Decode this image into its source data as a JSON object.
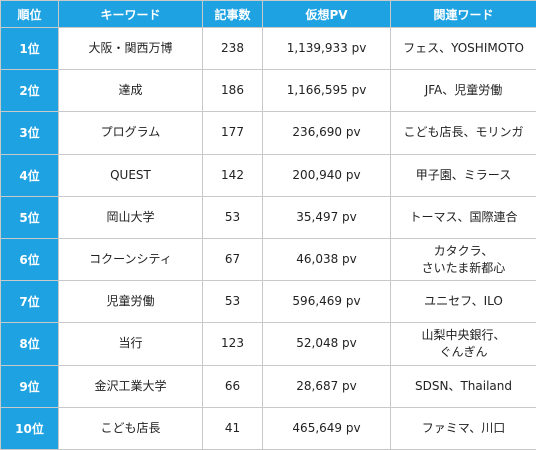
{
  "table": {
    "headers": {
      "rank": "順位",
      "keyword": "キーワード",
      "articles": "記事数",
      "pv": "仮想PV",
      "related": "関連ワード"
    },
    "rows": [
      {
        "rank": "1位",
        "keyword": "大阪・関西万博",
        "articles": "238",
        "pv": "1,139,933 pv",
        "related": [
          "フェス、YOSHIMOTO"
        ]
      },
      {
        "rank": "2位",
        "keyword": "達成",
        "articles": "186",
        "pv": "1,166,595 pv",
        "related": [
          "JFA、児童労働"
        ]
      },
      {
        "rank": "3位",
        "keyword": "プログラム",
        "articles": "177",
        "pv": "236,690 pv",
        "related": [
          "こども店長、モリンガ"
        ]
      },
      {
        "rank": "4位",
        "keyword": "QUEST",
        "articles": "142",
        "pv": "200,940 pv",
        "related": [
          "甲子園、ミラース"
        ]
      },
      {
        "rank": "5位",
        "keyword": "岡山大学",
        "articles": "53",
        "pv": "35,497 pv",
        "related": [
          "トーマス、国際連合"
        ]
      },
      {
        "rank": "6位",
        "keyword": "コクーンシティ",
        "articles": "67",
        "pv": "46,038 pv",
        "related": [
          "カタクラ、",
          "さいたま新都心"
        ]
      },
      {
        "rank": "7位",
        "keyword": "児童労働",
        "articles": "53",
        "pv": "596,469 pv",
        "related": [
          "ユニセフ、ILO"
        ]
      },
      {
        "rank": "8位",
        "keyword": "当行",
        "articles": "123",
        "pv": "52,048 pv",
        "related": [
          "山梨中央銀行、",
          "ぐんぎん"
        ]
      },
      {
        "rank": "9位",
        "keyword": "金沢工業大学",
        "articles": "66",
        "pv": "28,687 pv",
        "related": [
          "SDSN、Thailand"
        ]
      },
      {
        "rank": "10位",
        "keyword": "こども店長",
        "articles": "41",
        "pv": "465,649 pv",
        "related": [
          "ファミマ、川口"
        ]
      }
    ]
  }
}
